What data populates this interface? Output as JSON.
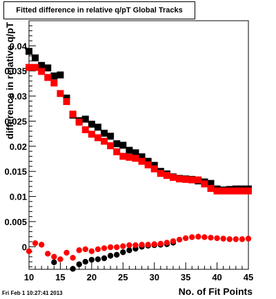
{
  "chart_data": {
    "type": "scatter",
    "title": "Fitted difference in relative q/pT  Global Tracks",
    "xlabel": "No. of Fit Points",
    "ylabel": "difference in relative q/pT",
    "xlim": [
      10,
      45
    ],
    "ylim": [
      -0.0045,
      0.045
    ],
    "x_ticks": [
      "10",
      "15",
      "20",
      "25",
      "30",
      "35",
      "40",
      "45"
    ],
    "y_ticks": [
      "0",
      "0.005",
      "0.01",
      "0.015",
      "0.02",
      "0.025",
      "0.03",
      "0.035",
      "0.04"
    ],
    "grid": false,
    "series": [
      {
        "marker": "square",
        "color": "#000000",
        "x": [
          10,
          11,
          12,
          13,
          14,
          15,
          16,
          17,
          18,
          19,
          20,
          21,
          22,
          23,
          24,
          25,
          26,
          27,
          28,
          29,
          30,
          31,
          32,
          33,
          34,
          35,
          36,
          37,
          38,
          39,
          40,
          41,
          42,
          43,
          44,
          45
        ],
        "y": [
          0.0389,
          0.0376,
          0.0361,
          0.0356,
          0.034,
          0.0342,
          0.0296,
          0.0262,
          0.0251,
          0.0254,
          0.0244,
          0.0238,
          0.0226,
          0.022,
          0.0205,
          0.0202,
          0.0192,
          0.0187,
          0.0179,
          0.017,
          0.0162,
          0.015,
          0.0145,
          0.0139,
          0.0136,
          0.0135,
          0.0134,
          0.0131,
          0.0129,
          0.0126,
          0.0115,
          0.0113,
          0.0114,
          0.0115,
          0.0115,
          0.0115
        ]
      },
      {
        "marker": "square",
        "color": "#ff0000",
        "x": [
          10,
          11,
          12,
          13,
          14,
          15,
          16,
          17,
          18,
          19,
          20,
          21,
          22,
          23,
          24,
          25,
          26,
          27,
          28,
          29,
          30,
          31,
          32,
          33,
          34,
          35,
          36,
          37,
          38,
          39,
          40,
          41,
          42,
          43,
          44,
          45
        ],
        "y": [
          0.0357,
          0.0357,
          0.0349,
          0.0337,
          0.0326,
          0.0305,
          0.0289,
          0.0264,
          0.0248,
          0.0233,
          0.0224,
          0.0217,
          0.021,
          0.0201,
          0.0189,
          0.018,
          0.0178,
          0.0176,
          0.017,
          0.0163,
          0.0155,
          0.0146,
          0.0142,
          0.0138,
          0.0135,
          0.0134,
          0.0133,
          0.0133,
          0.0125,
          0.0116,
          0.0111,
          0.0111,
          0.0111,
          0.0111,
          0.0111,
          0.0111
        ]
      },
      {
        "marker": "circle",
        "color": "#000000",
        "x": [
          14,
          17,
          18,
          19,
          20,
          21,
          22,
          23,
          24,
          25,
          26,
          27,
          28,
          29,
          30,
          31,
          32,
          33
        ],
        "y": [
          -0.0031,
          -0.0044,
          -0.0035,
          -0.003,
          -0.0026,
          -0.0025,
          -0.0023,
          -0.0018,
          -0.0016,
          -0.0011,
          -0.0007,
          -0.0004,
          0.0,
          0.0002,
          0.0003,
          0.0004,
          0.0005,
          0.0008
        ]
      },
      {
        "marker": "circle",
        "color": "#ff0000",
        "x": [
          10,
          11,
          12,
          13,
          14,
          15,
          16,
          17,
          18,
          19,
          20,
          21,
          22,
          23,
          24,
          25,
          26,
          27,
          28,
          29,
          30,
          31,
          32,
          33,
          34,
          35,
          36,
          37,
          38,
          39,
          40,
          41,
          42,
          43,
          44,
          45
        ],
        "y": [
          -0.0009,
          0.0007,
          0.0004,
          -0.0014,
          -0.002,
          -0.0025,
          -0.0012,
          -0.0022,
          -0.0007,
          -0.0005,
          -0.0009,
          -0.0005,
          -0.0003,
          -0.0001,
          -0.0001,
          0.0001,
          0.0003,
          0.0003,
          0.0004,
          0.0004,
          0.0005,
          0.0006,
          0.0008,
          0.0011,
          0.0014,
          0.0017,
          0.0019,
          0.002,
          0.0019,
          0.0018,
          0.0017,
          0.0016,
          0.0015,
          0.0015,
          0.0015,
          0.0016
        ]
      }
    ]
  },
  "footer": "Fri Feb  1 10:27:41 2013"
}
